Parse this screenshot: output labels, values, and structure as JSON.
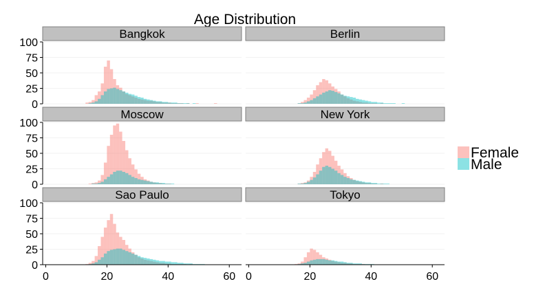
{
  "chart_data": {
    "type": "histogram",
    "title": "Age Distribution",
    "xlabel": "",
    "ylabel": "",
    "xlim": [
      -1,
      64
    ],
    "ylim": [
      0,
      100
    ],
    "xticks": [
      0,
      20,
      40,
      60
    ],
    "yticks": [
      0,
      25,
      50,
      75,
      100
    ],
    "bin_start": 0,
    "bin_width": 1,
    "grid": true,
    "legend_position": "right",
    "colors": {
      "Female": "#f8766d",
      "Male": "#00bfc4"
    },
    "series_names": [
      "Female",
      "Male"
    ],
    "facets": [
      {
        "name": "Bangkok",
        "Female": [
          0,
          0,
          0,
          0,
          0,
          0,
          0,
          0,
          0,
          0,
          0,
          0,
          0,
          2,
          3,
          6,
          14,
          20,
          33,
          60,
          70,
          56,
          40,
          30,
          26,
          20,
          16,
          14,
          12,
          10,
          8,
          7,
          6,
          5,
          5,
          4,
          3,
          3,
          2,
          2,
          2,
          1,
          1,
          1,
          1,
          0,
          1,
          0,
          0,
          1,
          0,
          0,
          0,
          0,
          0,
          1,
          0,
          0,
          0,
          0,
          0,
          0,
          0,
          0
        ],
        "Male": [
          0,
          0,
          0,
          0,
          0,
          0,
          0,
          0,
          0,
          0,
          0,
          0,
          0,
          0,
          1,
          2,
          4,
          8,
          14,
          20,
          24,
          25,
          26,
          24,
          22,
          20,
          18,
          16,
          15,
          13,
          11,
          10,
          8,
          7,
          6,
          5,
          4,
          4,
          3,
          3,
          2,
          2,
          2,
          1,
          1,
          1,
          1,
          0,
          1,
          0,
          0,
          0,
          0,
          0,
          0,
          0,
          0,
          0,
          0,
          0,
          0,
          0,
          0,
          0
        ]
      },
      {
        "name": "Berlin",
        "Female": [
          0,
          0,
          0,
          0,
          0,
          0,
          0,
          0,
          0,
          0,
          0,
          0,
          0,
          0,
          0,
          0,
          1,
          3,
          6,
          10,
          15,
          22,
          30,
          35,
          40,
          38,
          33,
          28,
          24,
          20,
          15,
          12,
          9,
          7,
          5,
          4,
          3,
          2,
          2,
          1,
          1,
          1,
          0,
          1,
          0,
          0,
          0,
          0,
          0,
          0,
          0,
          0,
          0,
          0,
          0,
          0,
          0,
          0,
          0,
          0,
          0,
          0,
          0,
          0
        ],
        "Male": [
          0,
          0,
          0,
          0,
          0,
          0,
          0,
          0,
          0,
          0,
          0,
          0,
          0,
          0,
          0,
          0,
          1,
          1,
          2,
          4,
          6,
          9,
          12,
          15,
          18,
          20,
          22,
          21,
          19,
          17,
          15,
          13,
          12,
          11,
          10,
          8,
          7,
          6,
          5,
          4,
          3,
          3,
          2,
          2,
          1,
          1,
          1,
          1,
          0,
          0,
          1,
          0,
          0,
          0,
          0,
          0,
          0,
          0,
          0,
          0,
          0,
          0,
          0,
          0
        ]
      },
      {
        "name": "Moscow",
        "Female": [
          0,
          0,
          0,
          0,
          0,
          0,
          0,
          0,
          0,
          0,
          0,
          0,
          0,
          0,
          1,
          2,
          3,
          6,
          15,
          35,
          62,
          80,
          95,
          98,
          85,
          70,
          55,
          42,
          32,
          24,
          17,
          12,
          8,
          6,
          4,
          3,
          2,
          2,
          1,
          1,
          1,
          0,
          0,
          0,
          0,
          0,
          0,
          0,
          0,
          0,
          0,
          0,
          0,
          0,
          0,
          0,
          0,
          0,
          0,
          0,
          0,
          0,
          0,
          0
        ],
        "Male": [
          0,
          0,
          0,
          0,
          0,
          0,
          0,
          0,
          0,
          0,
          0,
          0,
          0,
          0,
          0,
          1,
          1,
          2,
          4,
          8,
          12,
          16,
          20,
          22,
          22,
          20,
          18,
          15,
          12,
          10,
          8,
          7,
          6,
          5,
          4,
          3,
          3,
          2,
          2,
          1,
          1,
          1,
          0,
          0,
          0,
          0,
          0,
          0,
          0,
          0,
          0,
          0,
          0,
          0,
          0,
          0,
          0,
          0,
          0,
          0,
          0,
          0,
          0,
          0
        ]
      },
      {
        "name": "New York",
        "Female": [
          0,
          0,
          0,
          0,
          0,
          0,
          0,
          0,
          0,
          0,
          0,
          0,
          0,
          0,
          0,
          0,
          1,
          2,
          3,
          6,
          12,
          20,
          32,
          42,
          52,
          58,
          54,
          46,
          38,
          30,
          24,
          18,
          13,
          10,
          7,
          5,
          4,
          3,
          2,
          2,
          1,
          1,
          0,
          1,
          0,
          0,
          0,
          0,
          0,
          0,
          0,
          0,
          0,
          0,
          0,
          0,
          0,
          0,
          0,
          0,
          0,
          0,
          0,
          0
        ],
        "Male": [
          0,
          0,
          0,
          0,
          0,
          0,
          0,
          0,
          0,
          0,
          0,
          0,
          0,
          0,
          0,
          0,
          1,
          1,
          2,
          4,
          7,
          11,
          16,
          22,
          28,
          30,
          28,
          25,
          22,
          18,
          15,
          12,
          10,
          8,
          7,
          6,
          5,
          4,
          3,
          3,
          2,
          2,
          1,
          1,
          1,
          1,
          0,
          0,
          0,
          0,
          0,
          0,
          0,
          0,
          0,
          0,
          0,
          0,
          0,
          0,
          0,
          0,
          0,
          0
        ]
      },
      {
        "name": "Sao Paulo",
        "Female": [
          0,
          0,
          0,
          0,
          0,
          0,
          0,
          0,
          0,
          0,
          0,
          0,
          0,
          1,
          3,
          6,
          14,
          30,
          45,
          60,
          72,
          82,
          66,
          52,
          45,
          40,
          32,
          26,
          20,
          16,
          12,
          10,
          8,
          7,
          6,
          5,
          4,
          3,
          3,
          2,
          2,
          1,
          1,
          1,
          1,
          1,
          0,
          1,
          0,
          0,
          0,
          0,
          0,
          0,
          0,
          0,
          0,
          0,
          0,
          0,
          0,
          0,
          0,
          0
        ],
        "Male": [
          0,
          0,
          0,
          0,
          0,
          0,
          0,
          0,
          0,
          0,
          0,
          0,
          0,
          0,
          1,
          2,
          4,
          8,
          12,
          18,
          22,
          24,
          25,
          26,
          26,
          24,
          22,
          20,
          18,
          16,
          14,
          12,
          11,
          10,
          9,
          8,
          7,
          6,
          6,
          5,
          5,
          4,
          4,
          3,
          3,
          2,
          2,
          2,
          1,
          1,
          1,
          1,
          0,
          0,
          0,
          0,
          0,
          0,
          0,
          0,
          0,
          0,
          0,
          0
        ]
      },
      {
        "name": "Tokyo",
        "Female": [
          0,
          0,
          0,
          0,
          0,
          0,
          0,
          0,
          0,
          0,
          0,
          0,
          0,
          0,
          0,
          1,
          2,
          5,
          12,
          20,
          26,
          24,
          20,
          16,
          12,
          10,
          8,
          6,
          5,
          4,
          3,
          3,
          2,
          2,
          1,
          1,
          1,
          1,
          0,
          0,
          0,
          0,
          0,
          0,
          0,
          0,
          0,
          0,
          0,
          0,
          0,
          0,
          0,
          0,
          0,
          0,
          0,
          0,
          0,
          0,
          0,
          0,
          0,
          0
        ],
        "Male": [
          0,
          0,
          0,
          0,
          0,
          0,
          0,
          0,
          0,
          0,
          0,
          0,
          0,
          0,
          0,
          0,
          1,
          2,
          3,
          5,
          7,
          8,
          9,
          9,
          9,
          8,
          7,
          7,
          6,
          5,
          5,
          4,
          3,
          3,
          2,
          2,
          2,
          1,
          1,
          1,
          1,
          0,
          0,
          0,
          0,
          0,
          0,
          0,
          0,
          0,
          0,
          0,
          0,
          0,
          0,
          0,
          0,
          0,
          0,
          0,
          0,
          0,
          0,
          0
        ]
      }
    ]
  }
}
